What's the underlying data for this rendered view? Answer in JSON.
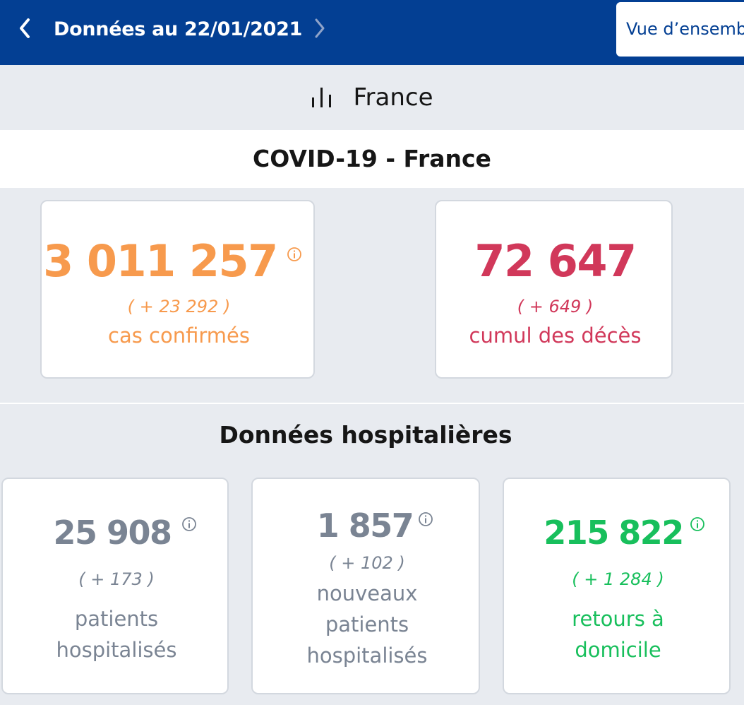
{
  "header": {
    "date_title": "Données au 22/01/2021",
    "view_button_label": "Vue d’ensemble"
  },
  "region": {
    "name": "France",
    "icon": "bar-chart-icon"
  },
  "section": {
    "title": "COVID-19 - France"
  },
  "cases": {
    "value": "3 011 257",
    "delta": "( + 23 292 )",
    "label": "cas confirmés",
    "color": "#f79a4d"
  },
  "deaths": {
    "value": "72 647",
    "delta": "( + 649 )",
    "label": "cumul des décès",
    "color": "#d1385a"
  },
  "hospital": {
    "title": "Données hospitalières",
    "hospitalized": {
      "value": "25 908",
      "delta": "( + 173 )",
      "label_line1": "patients",
      "label_line2": "hospitalisés",
      "color": "#7a8493"
    },
    "new_hospitalized": {
      "value": "1 857",
      "delta": "( + 102 )",
      "label_line1": "nouveaux",
      "label_line2": "patients",
      "label_line3": "hospitalisés",
      "color": "#7a8493"
    },
    "returns_home": {
      "value": "215 822",
      "delta": "( + 1 284 )",
      "label_line1": "retours à",
      "label_line2": "domicile",
      "color": "#18bf5c"
    }
  }
}
